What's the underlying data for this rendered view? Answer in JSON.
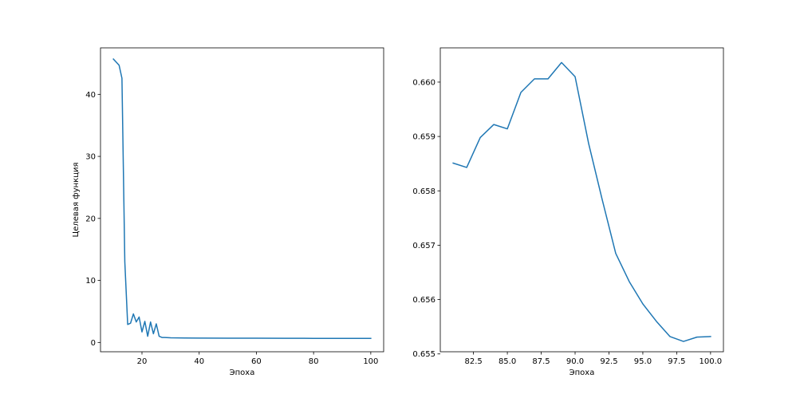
{
  "chart_data": [
    {
      "type": "line",
      "xlabel": "Эпоха",
      "ylabel": "Целевая функция",
      "xlim": [
        5.5,
        104.5
      ],
      "ylim": [
        -1.5,
        47.5
      ],
      "xticks": [
        20,
        40,
        60,
        80,
        100
      ],
      "xtick_labels": [
        "20",
        "40",
        "60",
        "80",
        "100"
      ],
      "yticks": [
        0,
        10,
        20,
        30,
        40
      ],
      "ytick_labels": [
        "0",
        "10",
        "20",
        "30",
        "40"
      ],
      "grid": false,
      "series": [
        {
          "color": "#1f77b4",
          "x": [
            10,
            12,
            13,
            14,
            15,
            16,
            17,
            18,
            19,
            20,
            21,
            22,
            23,
            24,
            25,
            26,
            27,
            28,
            30,
            35,
            40,
            50,
            60,
            70,
            80,
            90,
            100
          ],
          "y": [
            45.7,
            44.7,
            42.6,
            13.0,
            2.9,
            3.1,
            4.6,
            3.3,
            4.1,
            1.7,
            3.4,
            1.0,
            3.3,
            1.4,
            3.0,
            1.0,
            0.8,
            0.8,
            0.75,
            0.72,
            0.7,
            0.69,
            0.68,
            0.67,
            0.66,
            0.66,
            0.655
          ]
        }
      ]
    },
    {
      "type": "line",
      "xlabel": "Эпоха",
      "ylabel": "",
      "xlim": [
        80.05,
        100.95
      ],
      "ylim": [
        0.65504,
        0.66063
      ],
      "xticks": [
        82.5,
        85.0,
        87.5,
        90.0,
        92.5,
        95.0,
        97.5,
        100.0
      ],
      "xtick_labels": [
        "82.5",
        "85.0",
        "87.5",
        "90.0",
        "92.5",
        "95.0",
        "97.5",
        "100.0"
      ],
      "yticks": [
        0.655,
        0.656,
        0.657,
        0.658,
        0.659,
        0.66
      ],
      "ytick_labels": [
        "0.655",
        "0.656",
        "0.657",
        "0.658",
        "0.659",
        "0.660"
      ],
      "grid": false,
      "series": [
        {
          "color": "#1f77b4",
          "x": [
            81,
            82,
            83,
            84,
            85,
            86,
            87,
            88,
            89,
            90,
            91,
            92,
            93,
            94,
            95,
            96,
            97,
            98,
            99,
            100
          ],
          "y": [
            0.65851,
            0.65843,
            0.65898,
            0.65922,
            0.65914,
            0.65981,
            0.66006,
            0.66006,
            0.66036,
            0.6601,
            0.65887,
            0.65784,
            0.65685,
            0.65633,
            0.65592,
            0.6556,
            0.65532,
            0.65523,
            0.65531,
            0.65532
          ]
        }
      ]
    }
  ]
}
